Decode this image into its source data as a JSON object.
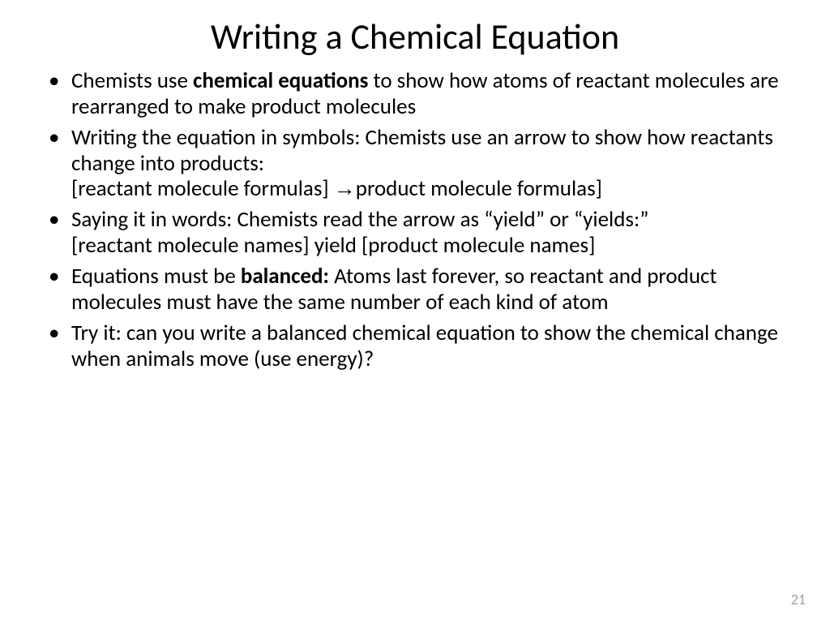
{
  "slide": {
    "title": "Writing a Chemical Equation",
    "page_number": "21",
    "title_fontsize": 44,
    "body_fontsize": 27,
    "background_color": "#ffffff",
    "text_color": "#000000",
    "page_number_color": "#a0a0a0",
    "bullets": [
      {
        "pre": "Chemists use ",
        "bold": "chemical equations",
        "post": " to show how atoms of reactant molecules are rearranged to make product molecules"
      },
      {
        "pre": "Writing the equation in symbols: Chemists use an arrow to show how reactants change into products:",
        "line2_pre": "[reactant molecule formulas] ",
        "arrow": "→",
        "line2_post": "product molecule formulas]"
      },
      {
        "pre": "Saying it in words: Chemists read the arrow as “yield” or “yields:”",
        "line2": "[reactant molecule names] yield [product molecule names]"
      },
      {
        "pre": "Equations must be ",
        "bold": "balanced:",
        "post": "  Atoms last forever, so reactant and product molecules must have the same number of each kind of atom"
      },
      {
        "pre": "Try it: can you write a balanced chemical equation to show the chemical change when animals move (use energy)?"
      }
    ]
  }
}
